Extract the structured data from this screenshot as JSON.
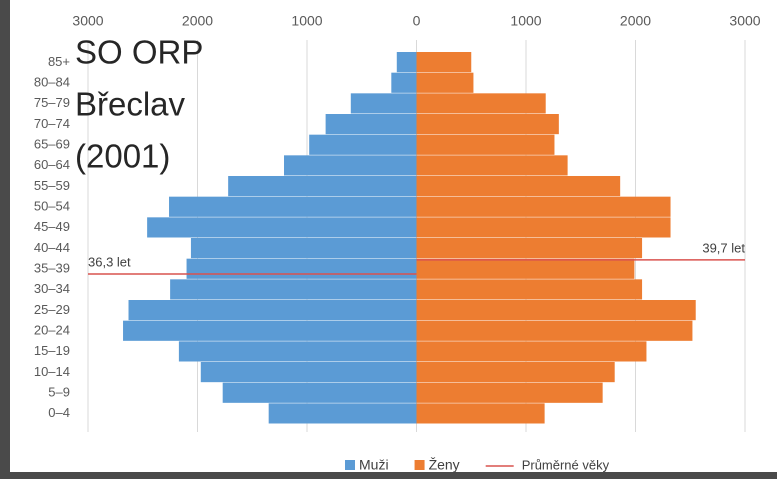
{
  "chart_data": {
    "type": "pyramid",
    "title": [
      "SO ORP",
      "Břeclav",
      "(2001)"
    ],
    "categories": [
      "0–4",
      "5–9",
      "10–14",
      "15–19",
      "20–24",
      "25–29",
      "30–34",
      "35–39",
      "40–44",
      "45–49",
      "50–54",
      "55–59",
      "60–64",
      "65–69",
      "70–74",
      "75–79",
      "80–84",
      "85+"
    ],
    "series": [
      {
        "name": "Muži",
        "color": "#5b9bd5",
        "values": [
          -1350,
          -1770,
          -1970,
          -2170,
          -2680,
          -2630,
          -2250,
          -2100,
          -2060,
          -2460,
          -2260,
          -1720,
          -1210,
          -980,
          -830,
          -600,
          -230,
          -180
        ]
      },
      {
        "name": "Ženy",
        "color": "#ed7d31",
        "values": [
          1170,
          1700,
          1810,
          2100,
          2520,
          2550,
          2060,
          1990,
          2060,
          2320,
          2320,
          1860,
          1380,
          1260,
          1300,
          1180,
          520,
          500
        ]
      }
    ],
    "averages": {
      "name": "Průměrné věky",
      "color": "#d9534f",
      "values": [
        36.3,
        39.7
      ],
      "value_labels": [
        "36,3 let",
        "39,7 let"
      ]
    },
    "xlim": [
      -3000,
      3000
    ],
    "xticks": [
      {
        "value": -3000,
        "label": "3000"
      },
      {
        "value": -2000,
        "label": "2000"
      },
      {
        "value": -1000,
        "label": "1000"
      },
      0,
      1000,
      2000,
      3000
    ],
    "grid": true
  }
}
